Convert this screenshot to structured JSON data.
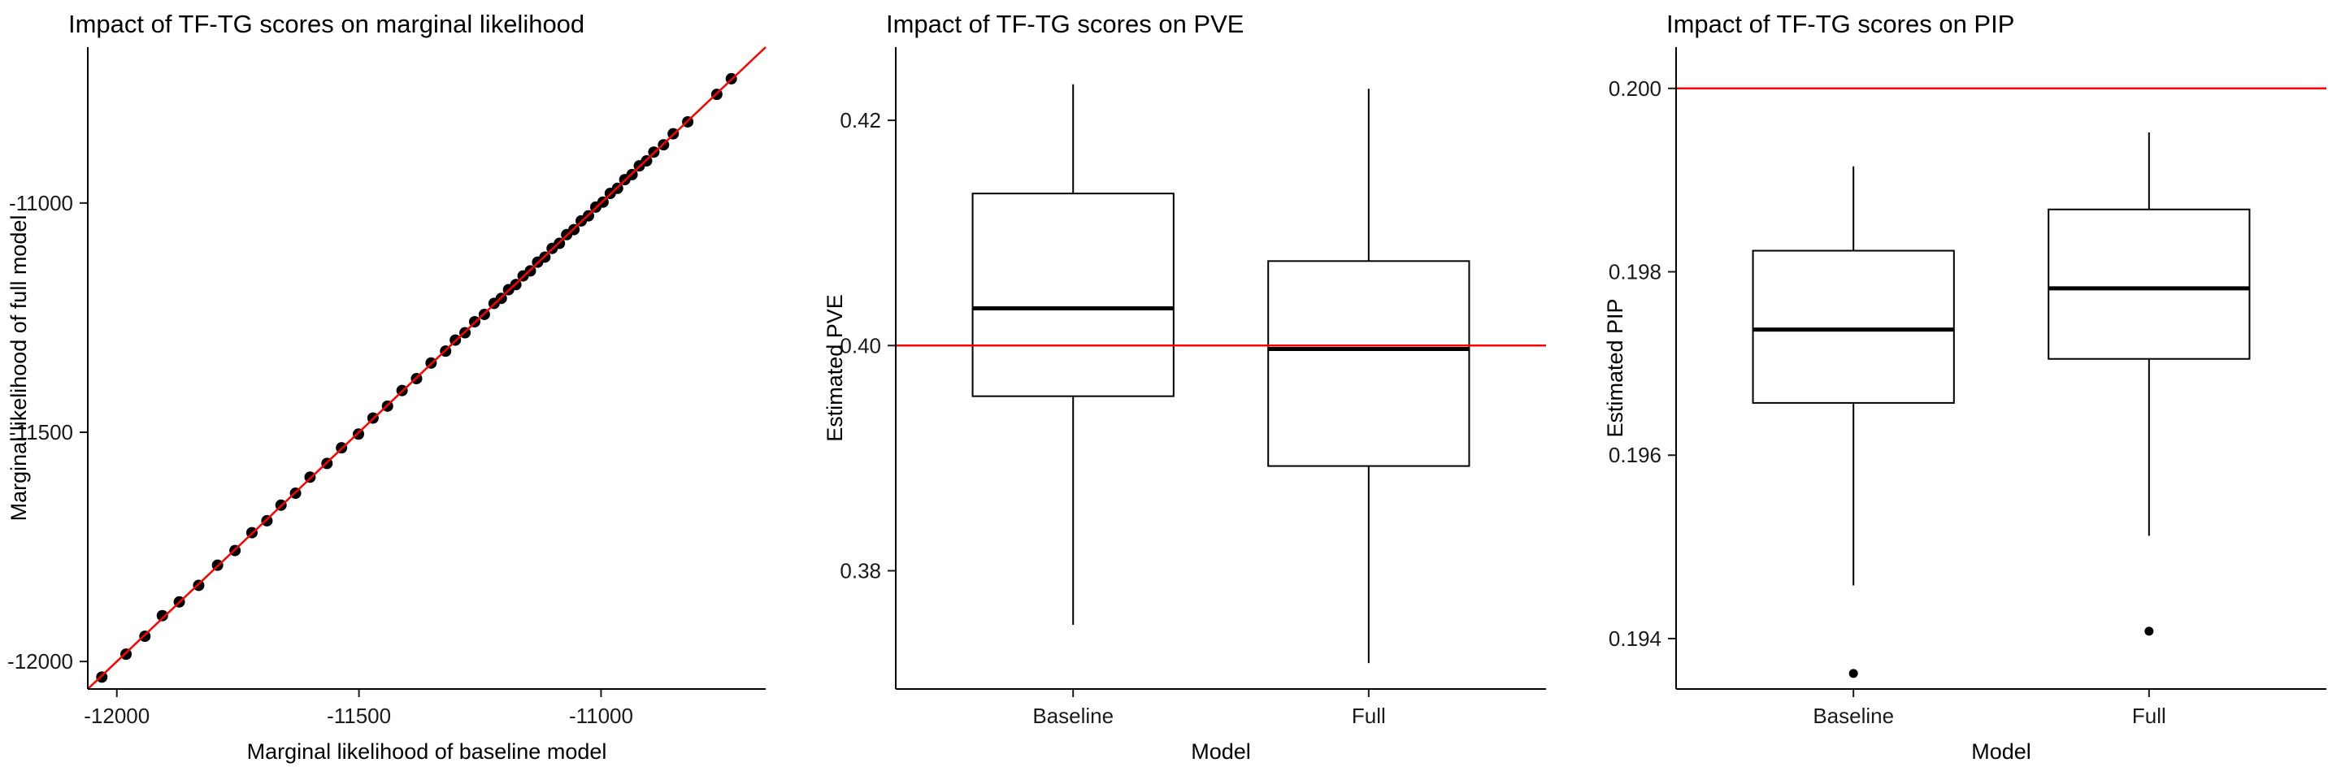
{
  "figure": {
    "background": "#FFFFFF",
    "accent_red": "#FF0000",
    "axis_color": "#000000",
    "tick_label_color": "#1A1A1A"
  },
  "chart_data": [
    {
      "type": "scatter",
      "title": "Impact of TF-TG scores on marginal likelihood",
      "xlabel": "Marginal likelihood of baseline model",
      "ylabel": "Marginal likelihood of full model",
      "xlim": [
        -12060,
        -10660
      ],
      "ylim": [
        -12060,
        -10660
      ],
      "xticks": [
        -12000,
        -11500,
        -11000
      ],
      "xtick_labels": [
        "-12000",
        "-11500",
        "-11000"
      ],
      "yticks": [
        -11000,
        -11500,
        -12000
      ],
      "ytick_labels": [
        "-11000",
        "-11500",
        "-12000"
      ],
      "grid": false,
      "legend": "none",
      "point_color": "#000000",
      "ref_line": {
        "kind": "identity",
        "color": "#FF0000"
      },
      "points": [
        [
          -12031,
          -12034
        ],
        [
          -11981,
          -11984
        ],
        [
          -11942,
          -11945
        ],
        [
          -11906,
          -11900
        ],
        [
          -11871,
          -11870
        ],
        [
          -11831,
          -11834
        ],
        [
          -11792,
          -11790
        ],
        [
          -11756,
          -11758
        ],
        [
          -11721,
          -11719
        ],
        [
          -11690,
          -11693
        ],
        [
          -11661,
          -11659
        ],
        [
          -11631,
          -11633
        ],
        [
          -11601,
          -11598
        ],
        [
          -11566,
          -11568
        ],
        [
          -11536,
          -11534
        ],
        [
          -11501,
          -11504
        ],
        [
          -11471,
          -11469
        ],
        [
          -11441,
          -11443
        ],
        [
          -11411,
          -11409
        ],
        [
          -11381,
          -11383
        ],
        [
          -11351,
          -11349
        ],
        [
          -11321,
          -11323
        ],
        [
          -11301,
          -11299
        ],
        [
          -11281,
          -11283
        ],
        [
          -11261,
          -11259
        ],
        [
          -11241,
          -11243
        ],
        [
          -11221,
          -11219
        ],
        [
          -11206,
          -11208
        ],
        [
          -11191,
          -11189
        ],
        [
          -11176,
          -11178
        ],
        [
          -11161,
          -11159
        ],
        [
          -11146,
          -11148
        ],
        [
          -11131,
          -11129
        ],
        [
          -11116,
          -11118
        ],
        [
          -11101,
          -11099
        ],
        [
          -11086,
          -11088
        ],
        [
          -11071,
          -11069
        ],
        [
          -11056,
          -11058
        ],
        [
          -11041,
          -11039
        ],
        [
          -11026,
          -11028
        ],
        [
          -11011,
          -11009
        ],
        [
          -10996,
          -10998
        ],
        [
          -10981,
          -10979
        ],
        [
          -10966,
          -10968
        ],
        [
          -10951,
          -10949
        ],
        [
          -10936,
          -10938
        ],
        [
          -10921,
          -10919
        ],
        [
          -10906,
          -10908
        ],
        [
          -10891,
          -10889
        ],
        [
          -10871,
          -10873
        ],
        [
          -10851,
          -10849
        ],
        [
          -10821,
          -10823
        ],
        [
          -10761,
          -10763
        ],
        [
          -10731,
          -10729
        ]
      ]
    },
    {
      "type": "box",
      "title": "Impact of TF-TG scores on PVE",
      "xlabel": "Model",
      "ylabel": "Estimated PVE",
      "ylim": [
        0.3695,
        0.4265
      ],
      "yticks": [
        0.38,
        0.4,
        0.42
      ],
      "ytick_labels": [
        "0.38",
        "0.40",
        "0.42"
      ],
      "grid": false,
      "legend": "none",
      "ref_line": {
        "kind": "hline",
        "y": 0.4,
        "color": "#FF0000"
      },
      "categories": [
        "Baseline",
        "Full"
      ],
      "boxes": [
        {
          "category": "Baseline",
          "whisker_low": 0.3752,
          "q1": 0.3955,
          "median": 0.4033,
          "q3": 0.4135,
          "whisker_high": 0.4232,
          "outliers": []
        },
        {
          "category": "Full",
          "whisker_low": 0.3718,
          "q1": 0.3893,
          "median": 0.3997,
          "q3": 0.4075,
          "whisker_high": 0.4228,
          "outliers": []
        }
      ]
    },
    {
      "type": "box",
      "title": "Impact of TF-TG scores on PIP",
      "xlabel": "Model",
      "ylabel": "Estimated PIP",
      "ylim": [
        0.19345,
        0.20045
      ],
      "yticks": [
        0.194,
        0.196,
        0.198,
        0.2
      ],
      "ytick_labels": [
        "0.194",
        "0.196",
        "0.198",
        "0.200"
      ],
      "grid": false,
      "legend": "none",
      "ref_line": {
        "kind": "hline",
        "y": 0.2,
        "color": "#FF0000"
      },
      "categories": [
        "Baseline",
        "Full"
      ],
      "boxes": [
        {
          "category": "Baseline",
          "whisker_low": 0.19458,
          "q1": 0.19657,
          "median": 0.19737,
          "q3": 0.19823,
          "whisker_high": 0.19915,
          "outliers": [
            0.19362
          ]
        },
        {
          "category": "Full",
          "whisker_low": 0.19512,
          "q1": 0.19705,
          "median": 0.19782,
          "q3": 0.19868,
          "whisker_high": 0.19952,
          "outliers": [
            0.19408
          ]
        }
      ]
    }
  ]
}
